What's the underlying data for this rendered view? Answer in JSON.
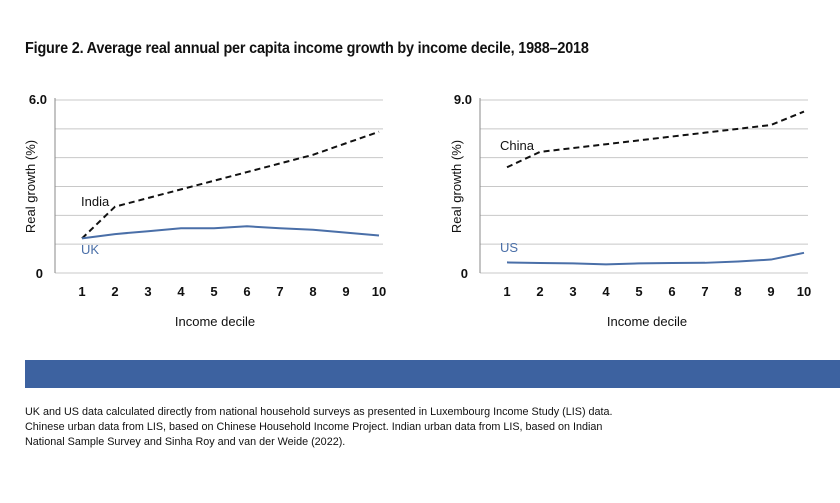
{
  "figure": {
    "title": "Figure 2. Average real annual per capita income growth by income decile, 1988–2018",
    "source_note": "UK and US data calculated directly from national household surveys as presented in Luxembourg Income Study (LIS) data. Chinese urban data from LIS, based on Chinese Household Income Project. Indian urban data from LIS, based on Indian National Sample Survey and Sinha Roy and van der Weide (2022).",
    "band_color": "#3d62a0"
  },
  "colors": {
    "us_uk_line": "#4a6fa8",
    "dashed_line": "#111111",
    "grid": "#c8c8c8",
    "axis": "#888888"
  },
  "chart_data": [
    {
      "type": "line",
      "xlabel": "Income decile",
      "ylabel": "Real growth (%)",
      "ylim": [
        0,
        6.0
      ],
      "ytick_labels": [
        "0",
        "6.0"
      ],
      "grid": true,
      "categories": [
        "1",
        "2",
        "3",
        "4",
        "5",
        "6",
        "7",
        "8",
        "9",
        "10"
      ],
      "series": [
        {
          "name": "India",
          "style": "dashed",
          "color": "#111111",
          "values": [
            1.2,
            2.3,
            2.6,
            2.9,
            3.2,
            3.5,
            3.8,
            4.1,
            4.5,
            4.9
          ]
        },
        {
          "name": "UK",
          "style": "solid",
          "color": "#4a6fa8",
          "values": [
            1.2,
            1.35,
            1.45,
            1.55,
            1.55,
            1.62,
            1.55,
            1.5,
            1.4,
            1.3
          ]
        }
      ]
    },
    {
      "type": "line",
      "xlabel": "Income decile",
      "ylabel": "Real growth (%)",
      "ylim": [
        0,
        9.0
      ],
      "ytick_labels": [
        "0",
        "9.0"
      ],
      "grid": true,
      "categories": [
        "1",
        "2",
        "3",
        "4",
        "5",
        "6",
        "7",
        "8",
        "9",
        "10"
      ],
      "series": [
        {
          "name": "China",
          "style": "dashed",
          "color": "#111111",
          "values": [
            5.5,
            6.3,
            6.5,
            6.7,
            6.9,
            7.1,
            7.3,
            7.5,
            7.7,
            8.4
          ]
        },
        {
          "name": "US",
          "style": "solid",
          "color": "#4a6fa8",
          "values": [
            0.55,
            0.52,
            0.5,
            0.45,
            0.5,
            0.52,
            0.53,
            0.6,
            0.7,
            1.05
          ]
        }
      ]
    }
  ]
}
